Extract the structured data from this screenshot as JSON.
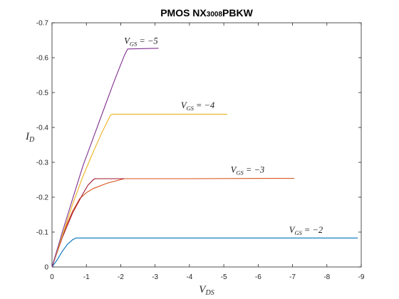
{
  "chart_data": {
    "type": "line",
    "title": "PMOS NX3008PBKW",
    "title_parts": {
      "pre": "PMOS NX",
      "sub": "3008",
      "post": "PBKW"
    },
    "xlabel": {
      "main": "V",
      "sub": "DS"
    },
    "ylabel": {
      "main": "I",
      "sub": "D"
    },
    "xlim": [
      0,
      -9
    ],
    "ylim": [
      0,
      -0.7
    ],
    "x_ticks": [
      0,
      -1,
      -2,
      -3,
      -4,
      -5,
      -6,
      -7,
      -8,
      -9
    ],
    "x_tick_labels": [
      "0",
      "-1",
      "-2",
      "-3",
      "-4",
      "-5",
      "-6",
      "-7",
      "-8",
      "-9"
    ],
    "y_ticks": [
      0,
      -0.1,
      -0.2,
      -0.3,
      -0.4,
      -0.5,
      -0.6,
      -0.7
    ],
    "y_tick_labels": [
      "0",
      "-0.1",
      "-0.2",
      "-0.3",
      "-0.4",
      "-0.5",
      "-0.6",
      "-0.7"
    ],
    "grid": false,
    "series": [
      {
        "color": "#0072BD",
        "points": [
          [
            0,
            0
          ],
          [
            -0.15,
            -0.02
          ],
          [
            -0.3,
            -0.045
          ],
          [
            -0.45,
            -0.065
          ],
          [
            -0.6,
            -0.078
          ],
          [
            -0.7,
            -0.083
          ],
          [
            -3,
            -0.083
          ],
          [
            -6,
            -0.083
          ],
          [
            -8.9,
            -0.083
          ]
        ],
        "annotation": {
          "main": "V",
          "sub": "GS",
          "rest": " = −2",
          "x": -6.9,
          "y": -0.098
        }
      },
      {
        "color": "#D95319",
        "points": [
          [
            0,
            0
          ],
          [
            -0.2,
            -0.06
          ],
          [
            -0.4,
            -0.115
          ],
          [
            -0.6,
            -0.16
          ],
          [
            -0.8,
            -0.195
          ],
          [
            -1.0,
            -0.213
          ],
          [
            -1.2,
            -0.225
          ],
          [
            -1.6,
            -0.24
          ],
          [
            -2.1,
            -0.253
          ],
          [
            -4,
            -0.253
          ],
          [
            -7.05,
            -0.254
          ]
        ],
        "annotation": {
          "main": "V",
          "sub": "GS",
          "rest": " = −3",
          "x": -5.2,
          "y": -0.27
        }
      },
      {
        "color": "#A2142F",
        "points": [
          [
            0,
            0
          ],
          [
            -0.3,
            -0.085
          ],
          [
            -0.6,
            -0.155
          ],
          [
            -0.9,
            -0.21
          ],
          [
            -1.05,
            -0.235
          ],
          [
            -1.2,
            -0.25
          ],
          [
            -1.25,
            -0.253
          ],
          [
            -2.1,
            -0.253
          ]
        ],
        "annotation": null
      },
      {
        "color": "#EDB120",
        "points": [
          [
            0,
            0
          ],
          [
            -0.3,
            -0.09
          ],
          [
            -0.6,
            -0.18
          ],
          [
            -0.9,
            -0.26
          ],
          [
            -1.2,
            -0.33
          ],
          [
            -1.45,
            -0.385
          ],
          [
            -1.6,
            -0.415
          ],
          [
            -1.7,
            -0.435
          ],
          [
            -1.75,
            -0.438
          ],
          [
            -3,
            -0.438
          ],
          [
            -5.1,
            -0.438
          ]
        ],
        "annotation": {
          "main": "V",
          "sub": "GS",
          "rest": " = −4",
          "x": -3.75,
          "y": -0.455
        }
      },
      {
        "color": "#7E2F8E",
        "points": [
          [
            0,
            0
          ],
          [
            -0.3,
            -0.1
          ],
          [
            -0.6,
            -0.195
          ],
          [
            -0.9,
            -0.29
          ],
          [
            -1.2,
            -0.37
          ],
          [
            -1.5,
            -0.45
          ],
          [
            -1.8,
            -0.53
          ],
          [
            -2.0,
            -0.58
          ],
          [
            -2.1,
            -0.605
          ],
          [
            -2.2,
            -0.625
          ],
          [
            -3.1,
            -0.627
          ]
        ],
        "annotation": {
          "main": "V",
          "sub": "GS",
          "rest": " = −5",
          "x": -2.1,
          "y": -0.64
        }
      }
    ]
  }
}
